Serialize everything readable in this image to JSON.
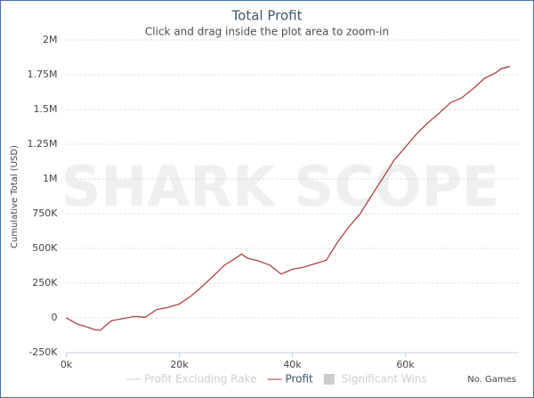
{
  "chart_data": {
    "type": "line",
    "title": "Total Profit",
    "subtitle": "Click and drag inside the plot area to zoom-in",
    "y_label": "Cumulative Total (USD)",
    "x_label": "No. Games",
    "watermark": "SHARK SCOPE",
    "x": [
      0,
      2000,
      4000,
      5000,
      6000,
      8000,
      10000,
      12000,
      14000,
      16000,
      18000,
      20000,
      22000,
      24000,
      26000,
      28000,
      30000,
      31000,
      32000,
      34000,
      36000,
      38000,
      40000,
      42000,
      44000,
      46000,
      48000,
      50000,
      52000,
      54000,
      56000,
      58000,
      60000,
      62000,
      64000,
      66000,
      68000,
      70000,
      72000,
      74000,
      76000,
      77000,
      78500
    ],
    "series": [
      {
        "name": "Profit Excluding Rake",
        "color": "#cccccc",
        "visible": false,
        "symbol": "line"
      },
      {
        "name": "Profit",
        "color": "#a8342e",
        "visible": true,
        "symbol": "line",
        "values": [
          0,
          -45000,
          -70000,
          -85000,
          -90000,
          -20000,
          -5000,
          10000,
          5000,
          60000,
          75000,
          100000,
          155000,
          225000,
          300000,
          380000,
          430000,
          460000,
          430000,
          410000,
          380000,
          315000,
          350000,
          365000,
          390000,
          415000,
          545000,
          655000,
          750000,
          880000,
          1005000,
          1135000,
          1230000,
          1325000,
          1405000,
          1475000,
          1550000,
          1585000,
          1650000,
          1725000,
          1765000,
          1795000,
          1810000
        ]
      },
      {
        "name": "Significant Wins",
        "color": "#cccccc",
        "visible": false,
        "symbol": "box"
      }
    ],
    "xlim": [
      0,
      80000
    ],
    "xticks": [
      {
        "value": 0,
        "label": "0k"
      },
      {
        "value": 20000,
        "label": "20k"
      },
      {
        "value": 40000,
        "label": "40k"
      },
      {
        "value": 60000,
        "label": "60k"
      }
    ],
    "ylim": [
      -250000,
      2000000
    ],
    "yticks": [
      {
        "value": -250000,
        "label": "-250K"
      },
      0,
      {
        "value": 250000,
        "label": "250K"
      },
      {
        "value": 500000,
        "label": "500K"
      },
      {
        "value": 750000,
        "label": "750K"
      },
      {
        "value": 1000000,
        "label": "1M"
      },
      {
        "value": 1250000,
        "label": "1.25M"
      },
      {
        "value": 1500000,
        "label": "1.5M"
      },
      {
        "value": 1750000,
        "label": "1.75M"
      },
      {
        "value": 2000000,
        "label": "2M"
      }
    ],
    "grid": true
  }
}
